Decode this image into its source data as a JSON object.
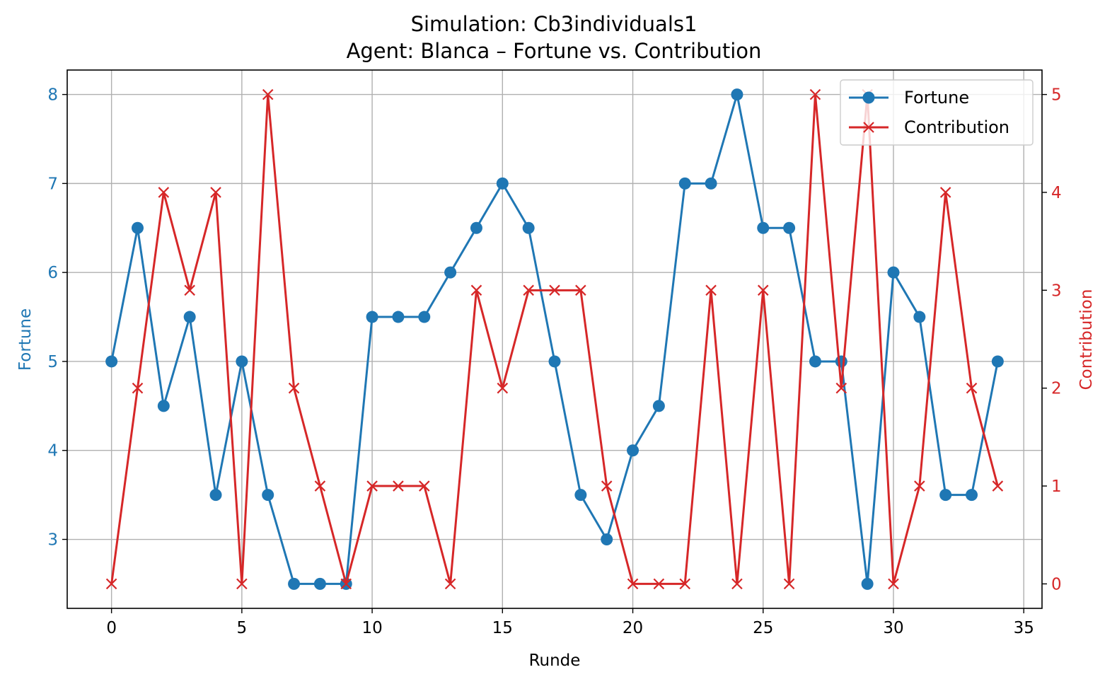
{
  "chart_data": {
    "type": "line",
    "title": "Simulation: Cb3individuals1",
    "subtitle": "Agent: Blanca – Fortune vs. Contribution",
    "xlabel": "Runde",
    "ylabel_left": "Fortune",
    "ylabel_right": "Contribution",
    "xlim": [
      -1.7,
      35.7
    ],
    "xticks": [
      0,
      5,
      10,
      15,
      20,
      25,
      30,
      35
    ],
    "ylim_left": [
      2.225,
      8.275
    ],
    "yticks_left": [
      3,
      4,
      5,
      6,
      7,
      8
    ],
    "ylim_right": [
      -0.25,
      5.25
    ],
    "yticks_right": [
      0,
      1,
      2,
      3,
      4,
      5
    ],
    "grid": true,
    "legend_position": "top-right",
    "x": [
      0,
      1,
      2,
      3,
      4,
      5,
      6,
      7,
      8,
      9,
      10,
      11,
      12,
      13,
      14,
      15,
      16,
      17,
      18,
      19,
      20,
      21,
      22,
      23,
      24,
      25,
      26,
      27,
      28,
      29,
      30,
      31,
      32,
      33,
      34
    ],
    "series": [
      {
        "name": "Fortune",
        "axis": "left",
        "color": "#1f77b4",
        "marker": "circle",
        "values": [
          5,
          6.5,
          4.5,
          5.5,
          3.5,
          5,
          3.5,
          2.5,
          2.5,
          2.5,
          5.5,
          5.5,
          5.5,
          6,
          6.5,
          7,
          6.5,
          5,
          3.5,
          3,
          4,
          4.5,
          7,
          7,
          8,
          6.5,
          6.5,
          5,
          5,
          2.5,
          6,
          5.5,
          3.5,
          3.5,
          5
        ]
      },
      {
        "name": "Contribution",
        "axis": "right",
        "color": "#d62728",
        "marker": "x",
        "values": [
          0,
          2,
          4,
          3,
          4,
          0,
          5,
          2,
          1,
          0,
          1,
          1,
          1,
          0,
          3,
          2,
          3,
          3,
          3,
          1,
          0,
          0,
          0,
          3,
          0,
          3,
          0,
          5,
          2,
          5,
          0,
          1,
          4,
          2,
          1
        ]
      }
    ]
  }
}
